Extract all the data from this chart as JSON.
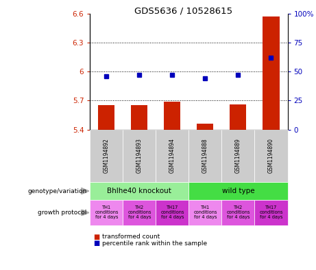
{
  "title": "GDS5636 / 10528615",
  "samples": [
    "GSM1194892",
    "GSM1194893",
    "GSM1194894",
    "GSM1194888",
    "GSM1194889",
    "GSM1194890"
  ],
  "transformed_count": [
    5.65,
    5.65,
    5.69,
    5.46,
    5.66,
    6.57
  ],
  "percentile_rank": [
    46,
    47,
    47,
    44,
    47,
    62
  ],
  "ylim_left": [
    5.4,
    6.6
  ],
  "ylim_right": [
    0,
    100
  ],
  "yticks_left": [
    5.4,
    5.7,
    6.0,
    6.3,
    6.6
  ],
  "yticks_right": [
    0,
    25,
    50,
    75,
    100
  ],
  "ytick_labels_left": [
    "5.4",
    "5.7",
    "6",
    "6.3",
    "6.6"
  ],
  "ytick_labels_right": [
    "0",
    "25",
    "50",
    "75",
    "100%"
  ],
  "hlines": [
    5.7,
    6.0,
    6.3
  ],
  "genotype_groups": [
    {
      "label": "Bhlhe40 knockout",
      "start": 0,
      "end": 3,
      "color": "#99ee99"
    },
    {
      "label": "wild type",
      "start": 3,
      "end": 6,
      "color": "#44dd44"
    }
  ],
  "growth_protocol_colors": [
    "#ee88ee",
    "#dd55dd",
    "#cc33cc",
    "#ee88ee",
    "#dd55dd",
    "#cc33cc"
  ],
  "growth_protocol_labels": [
    "TH1\nconditions\nfor 4 days",
    "TH2\nconditions\nfor 4 days",
    "TH17\nconditions\nfor 4 days",
    "TH1\nconditions\nfor 4 days",
    "TH2\nconditions\nfor 4 days",
    "TH17\nconditions\nfor 4 days"
  ],
  "bar_color": "#cc2200",
  "dot_color": "#0000bb",
  "sample_bg_color": "#cccccc",
  "left_label_color": "#cc2200",
  "right_label_color": "#0000bb",
  "geno_left_label": "genotype/variation",
  "growth_left_label": "growth protocol",
  "legend_bar_label": "transformed count",
  "legend_dot_label": "percentile rank within the sample"
}
